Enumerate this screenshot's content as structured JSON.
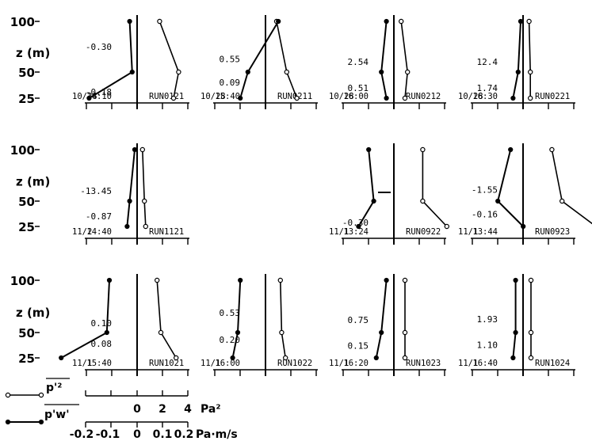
{
  "chart_data": {
    "type": "line",
    "ylabel": "z (m)",
    "y_ticks": [
      "100",
      "50",
      "25"
    ],
    "z_levels": [
      100,
      50,
      25
    ],
    "legend": {
      "series": [
        {
          "name": "p'²",
          "marker": "open-circle"
        },
        {
          "name": "p'w'",
          "marker": "filled-circle"
        }
      ],
      "scale1": {
        "ticks": [
          "0",
          "2",
          "4"
        ],
        "unit": "Pa²"
      },
      "scale2": {
        "ticks": [
          "-0.2",
          "-0.1",
          "0",
          "0.1",
          "0.2"
        ],
        "unit": "Pa·m/s"
      }
    },
    "panels": [
      {
        "date": "10/28",
        "time": "14:10",
        "run": "RUN0121",
        "p2": [
          1.4,
          2.9,
          2.5
        ],
        "pw": [
          -0.02,
          -0.01,
          -0.18
        ],
        "annotations": [
          {
            "text": "-0.30",
            "z": 75
          },
          {
            "text": "-0.18",
            "z": 31
          }
        ]
      },
      {
        "date": "10/28",
        "time": "15:40",
        "run": "RUN0211",
        "p2": [
          0.5,
          1.3,
          2.1
        ],
        "pw": [
          0.06,
          -0.06,
          -0.09
        ],
        "annotations": [
          {
            "text": "0.55",
            "z": 63
          },
          {
            "text": "0.09",
            "z": 40
          }
        ]
      },
      {
        "date": "10/28",
        "time": "16:00",
        "run": "RUN0212",
        "p2": [
          0.2,
          0.7,
          0.5
        ],
        "pw": [
          -0.02,
          -0.04,
          -0.02
        ],
        "annotations": [
          {
            "text": "2.54",
            "z": 60
          },
          {
            "text": "0.51",
            "z": 35
          }
        ]
      },
      {
        "date": "10/28",
        "time": "16:30",
        "run": "RUN0221",
        "p2": [
          0.1,
          0.2,
          0.2
        ],
        "pw": [
          0.0,
          -0.01,
          -0.03
        ],
        "annotations": [
          {
            "text": "12.4",
            "z": 60
          },
          {
            "text": "1.74",
            "z": 35
          }
        ]
      },
      {
        "date": "11/2",
        "time": "14:40",
        "run": "RUN1121",
        "p2": [
          0.05,
          0.2,
          0.3
        ],
        "pw": [
          0.0,
          -0.02,
          -0.03
        ],
        "annotations": [
          {
            "text": "-13.45",
            "z": 60
          },
          {
            "text": "-0.87",
            "z": 35
          }
        ]
      },
      {
        "date": "11/1",
        "time": "13:24",
        "run": "RUN0922",
        "p2": [
          1.9,
          1.9,
          3.8
        ],
        "pw": [
          -0.09,
          -0.07,
          -0.13
        ],
        "annotations": [
          {
            "text": "-0.30",
            "z": 29
          }
        ]
      },
      {
        "date": "11/1",
        "time": "13:44",
        "run": "RUN0923",
        "p2": [
          1.9,
          2.7,
          5.5
        ],
        "pw": [
          -0.04,
          -0.09,
          0.01
        ],
        "annotations": [
          {
            "text": "-1.55",
            "z": 61
          },
          {
            "text": "-0.16",
            "z": 37
          }
        ]
      },
      {
        "date": "11/1",
        "time": "15:40",
        "run": "RUN1021",
        "p2": [
          1.2,
          1.5,
          2.7
        ],
        "pw": [
          -0.1,
          -0.11,
          -0.29
        ],
        "annotations": [
          {
            "text": "0.10",
            "z": 59
          },
          {
            "text": "0.08",
            "z": 39
          }
        ]
      },
      {
        "date": "11/1",
        "time": "16:00",
        "run": "RUN1022",
        "p2": [
          0.8,
          0.9,
          1.2
        ],
        "pw": [
          -0.09,
          -0.1,
          -0.12
        ],
        "annotations": [
          {
            "text": "0.53",
            "z": 69
          },
          {
            "text": "0.20",
            "z": 43
          }
        ]
      },
      {
        "date": "11/1",
        "time": "16:20",
        "run": "RUN1023",
        "p2": [
          0.5,
          0.5,
          0.5
        ],
        "pw": [
          -0.02,
          -0.04,
          -0.06
        ],
        "annotations": [
          {
            "text": "0.75",
            "z": 62
          },
          {
            "text": "0.15",
            "z": 37
          }
        ]
      },
      {
        "date": "11/1",
        "time": "16:40",
        "run": "RUN1024",
        "p2": [
          0.25,
          0.25,
          0.25
        ],
        "pw": [
          -0.02,
          -0.02,
          -0.03
        ],
        "annotations": [
          {
            "text": "1.93",
            "z": 63
          },
          {
            "text": "1.10",
            "z": 38
          }
        ]
      }
    ]
  }
}
